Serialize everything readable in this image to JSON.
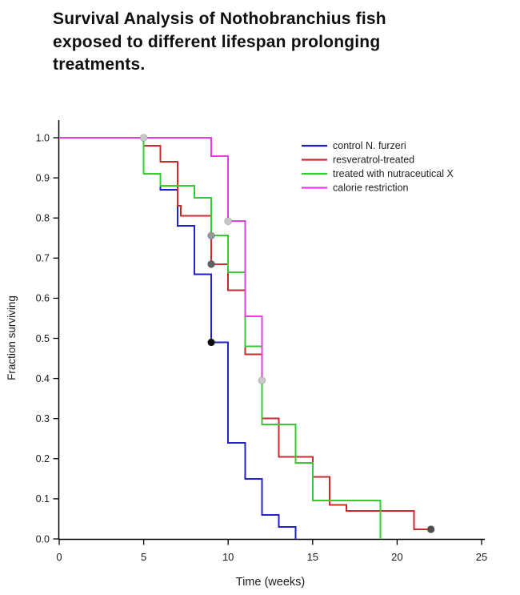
{
  "header": {
    "lines": [
      "Survival Analysis of Nothobranchius fish",
      "exposed to different lifespan prolonging",
      "treatments."
    ]
  },
  "chart_data": {
    "type": "line",
    "subtype": "kaplan-meier-step-survival",
    "title": "Survival Analysis of Nothobranchius fish exposed to different lifespan prolonging treatments.",
    "xlabel": "Time (weeks)",
    "ylabel": "Fraction surviving",
    "xlim": [
      0,
      25
    ],
    "ylim": [
      0.0,
      1.0
    ],
    "xticks": [
      0,
      5,
      10,
      15,
      20,
      25
    ],
    "yticks": [
      0.0,
      0.1,
      0.2,
      0.3,
      0.4,
      0.5,
      0.6,
      0.7,
      0.8,
      0.9,
      1.0
    ],
    "grid": false,
    "legend_position": "top-right-inside",
    "series": [
      {
        "name": "control N. furzeri",
        "color": "#2222cc",
        "points": [
          [
            0,
            1.0
          ],
          [
            5,
            0.91
          ],
          [
            6,
            0.87
          ],
          [
            7,
            0.78
          ],
          [
            8,
            0.66
          ],
          [
            9,
            0.49
          ],
          [
            10,
            0.24
          ],
          [
            11,
            0.15
          ],
          [
            12,
            0.06
          ],
          [
            13,
            0.03
          ],
          [
            14,
            0.0
          ]
        ]
      },
      {
        "name": "resveratrol-treated",
        "color": "#cc2b2b",
        "points": [
          [
            0,
            1.0
          ],
          [
            5,
            0.98
          ],
          [
            6,
            0.94
          ],
          [
            7,
            0.83
          ],
          [
            7.2,
            0.805
          ],
          [
            9,
            0.685
          ],
          [
            10,
            0.62
          ],
          [
            11,
            0.46
          ],
          [
            12,
            0.3
          ],
          [
            13,
            0.205
          ],
          [
            15,
            0.155
          ],
          [
            16,
            0.085
          ],
          [
            17,
            0.07
          ],
          [
            21,
            0.024
          ],
          [
            22,
            0.024
          ]
        ]
      },
      {
        "name": "treated with nutraceutical X",
        "color": "#33cc33",
        "points": [
          [
            0,
            1.0
          ],
          [
            5,
            0.91
          ],
          [
            6,
            0.88
          ],
          [
            8,
            0.85
          ],
          [
            9,
            0.756
          ],
          [
            10,
            0.665
          ],
          [
            11,
            0.48
          ],
          [
            12,
            0.285
          ],
          [
            14,
            0.19
          ],
          [
            15,
            0.096
          ],
          [
            19,
            0.0
          ]
        ]
      },
      {
        "name": "calorie restriction",
        "color": "#e53ae5",
        "points": [
          [
            0,
            1.0
          ],
          [
            9,
            0.954
          ],
          [
            10,
            0.792
          ],
          [
            11,
            0.555
          ],
          [
            12,
            0.395
          ]
        ]
      }
    ],
    "censor_marks": [
      {
        "series": "calorie restriction",
        "x": 5,
        "y": 1.0,
        "color": "#c8c8c8"
      },
      {
        "series": "treated with nutraceutical X",
        "x": 9,
        "y": 0.756,
        "color": "#979797"
      },
      {
        "series": "resveratrol-treated",
        "x": 9,
        "y": 0.685,
        "color": "#606060"
      },
      {
        "series": "control N. furzeri",
        "x": 9,
        "y": 0.49,
        "color": "#0d0d0d"
      },
      {
        "series": "calorie restriction",
        "x": 10,
        "y": 0.792,
        "color": "#c8c8c8"
      },
      {
        "series": "calorie restriction",
        "x": 12,
        "y": 0.395,
        "color": "#c8c8c8"
      },
      {
        "series": "resveratrol-treated",
        "x": 22,
        "y": 0.024,
        "color": "#4f4f4f"
      }
    ]
  }
}
